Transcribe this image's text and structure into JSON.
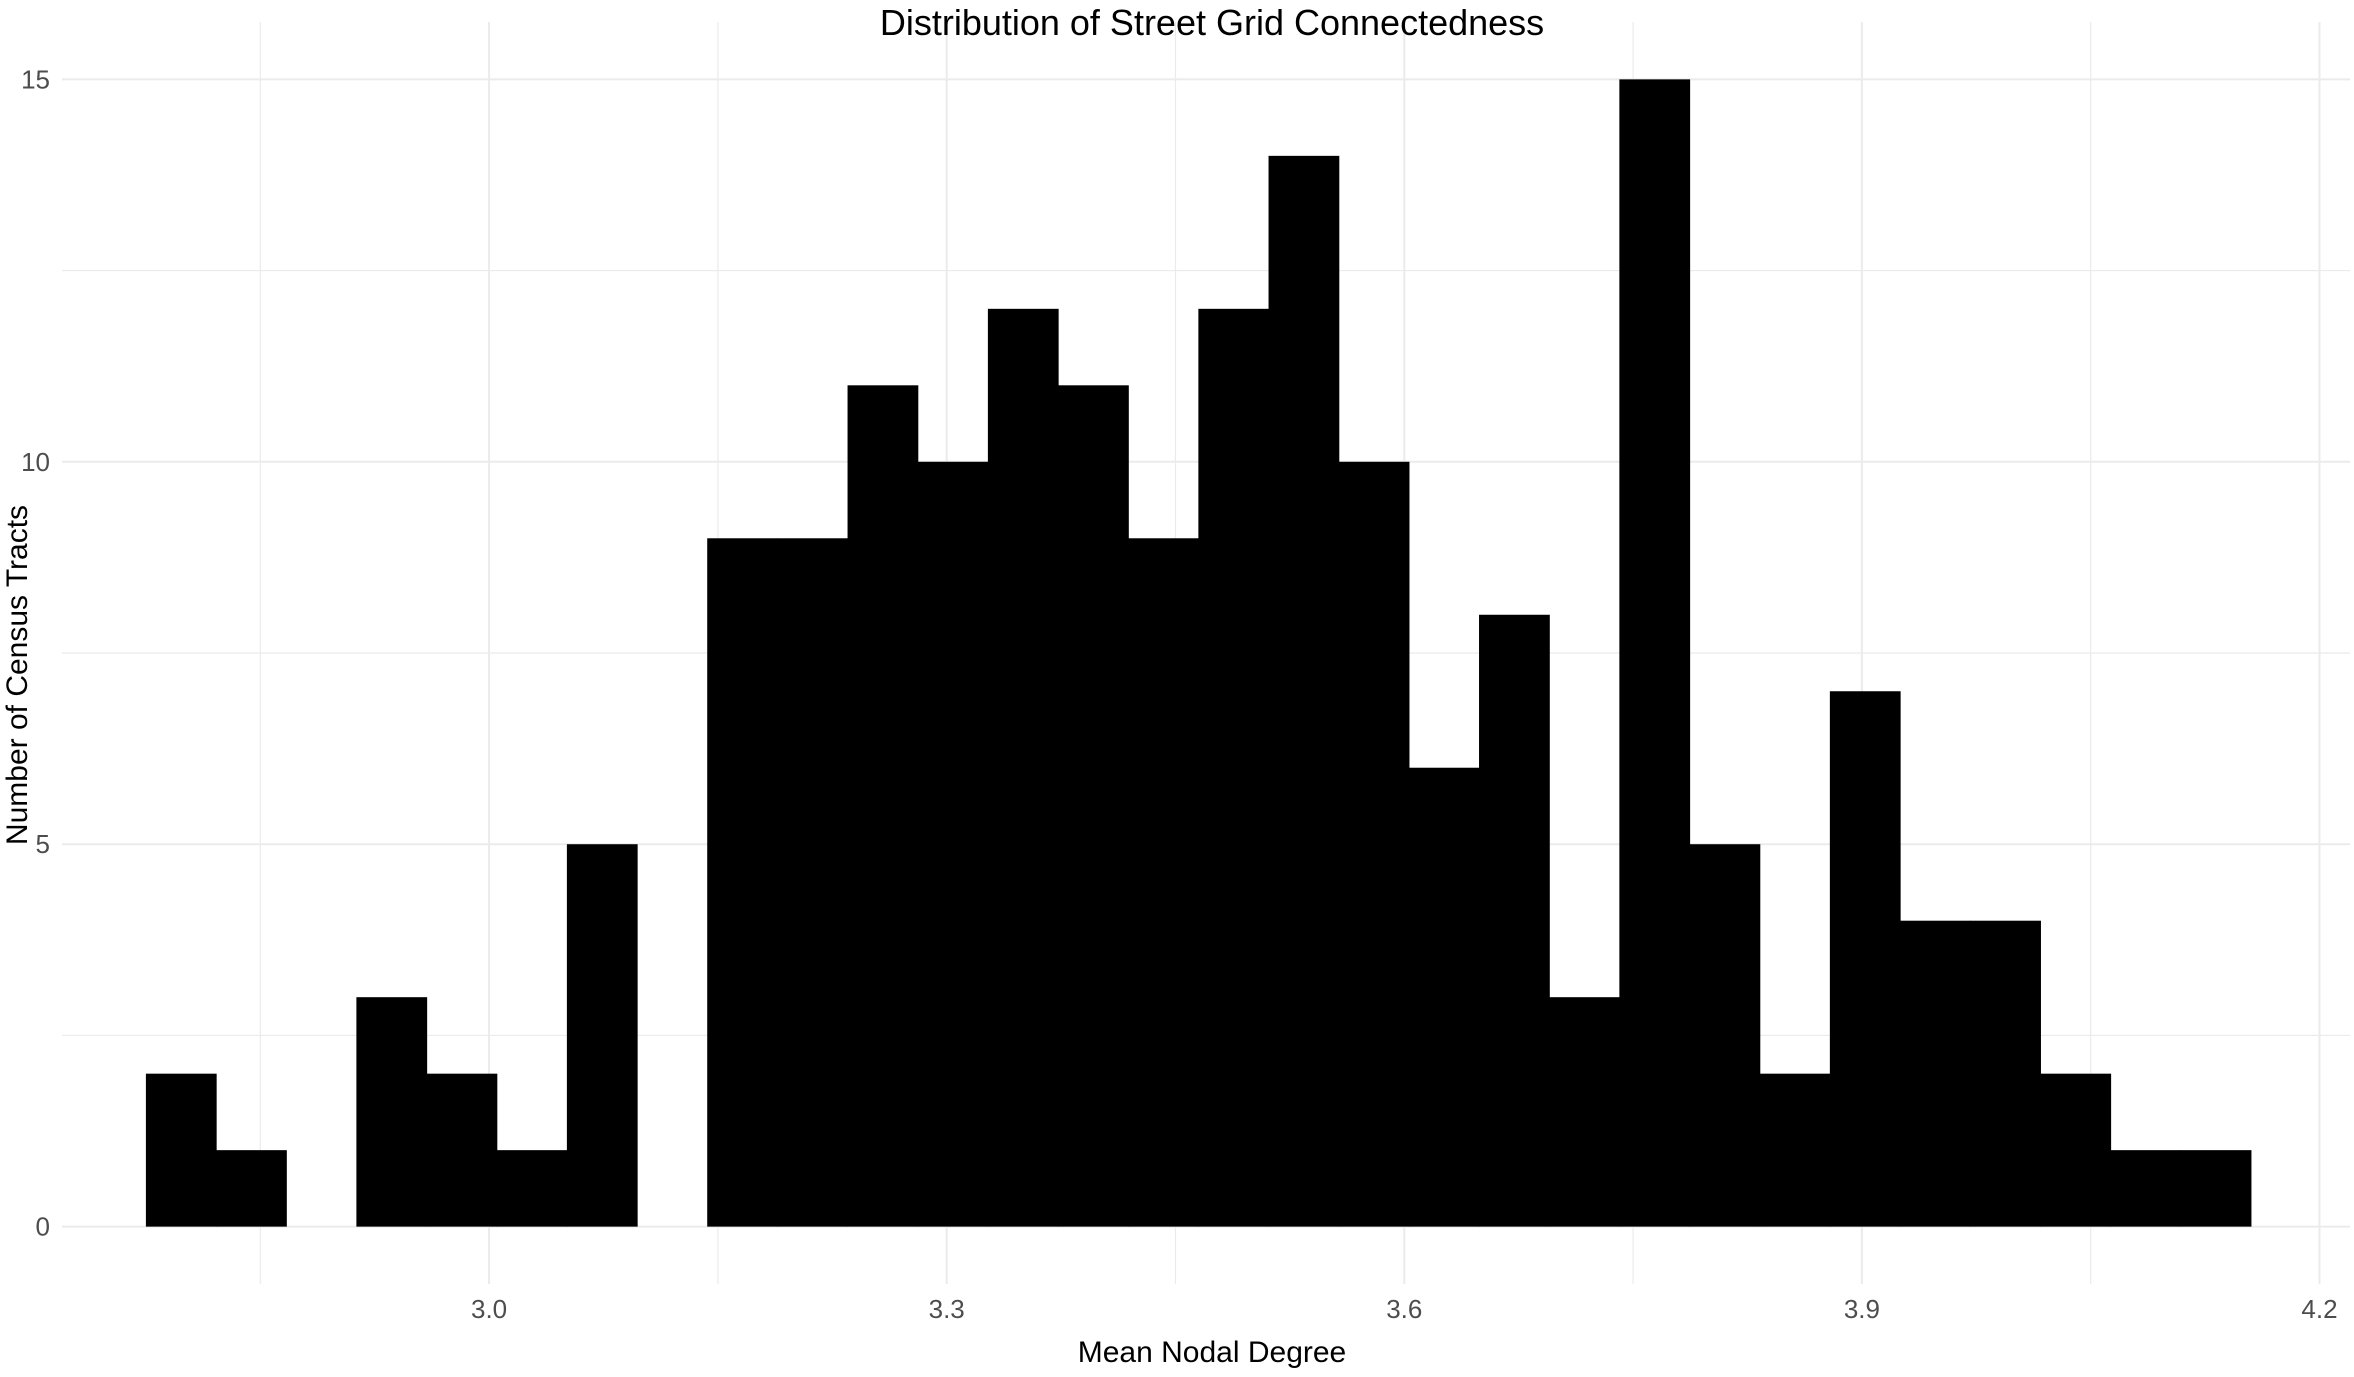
{
  "chart_data": {
    "type": "bar",
    "title": "Distribution of Street Grid Connectedness",
    "xlabel": "Mean Nodal Degree",
    "ylabel": "Number of Census Tracts",
    "xlim": [
      2.72,
      4.22
    ],
    "ylim": [
      -0.75,
      15.75
    ],
    "x_ticks": [
      {
        "value": 3.0,
        "label": "3.0"
      },
      {
        "value": 3.3,
        "label": "3.3"
      },
      {
        "value": 3.6,
        "label": "3.6"
      },
      {
        "value": 3.9,
        "label": "3.9"
      },
      {
        "value": 4.2,
        "label": "4.2"
      }
    ],
    "y_ticks": [
      {
        "value": 0,
        "label": "0"
      },
      {
        "value": 5,
        "label": "5"
      },
      {
        "value": 10,
        "label": "10"
      },
      {
        "value": 15,
        "label": "15"
      }
    ],
    "bin_start": 2.775,
    "bin_width": 0.046,
    "values": [
      2,
      1,
      0,
      3,
      2,
      1,
      5,
      0,
      9,
      9,
      11,
      10,
      12,
      11,
      9,
      12,
      14,
      10,
      6,
      8,
      3,
      15,
      5,
      2,
      7,
      4,
      4,
      2,
      1,
      1
    ],
    "grid": true,
    "bar_color": "#000000",
    "grid_color": "#ebebeb"
  }
}
